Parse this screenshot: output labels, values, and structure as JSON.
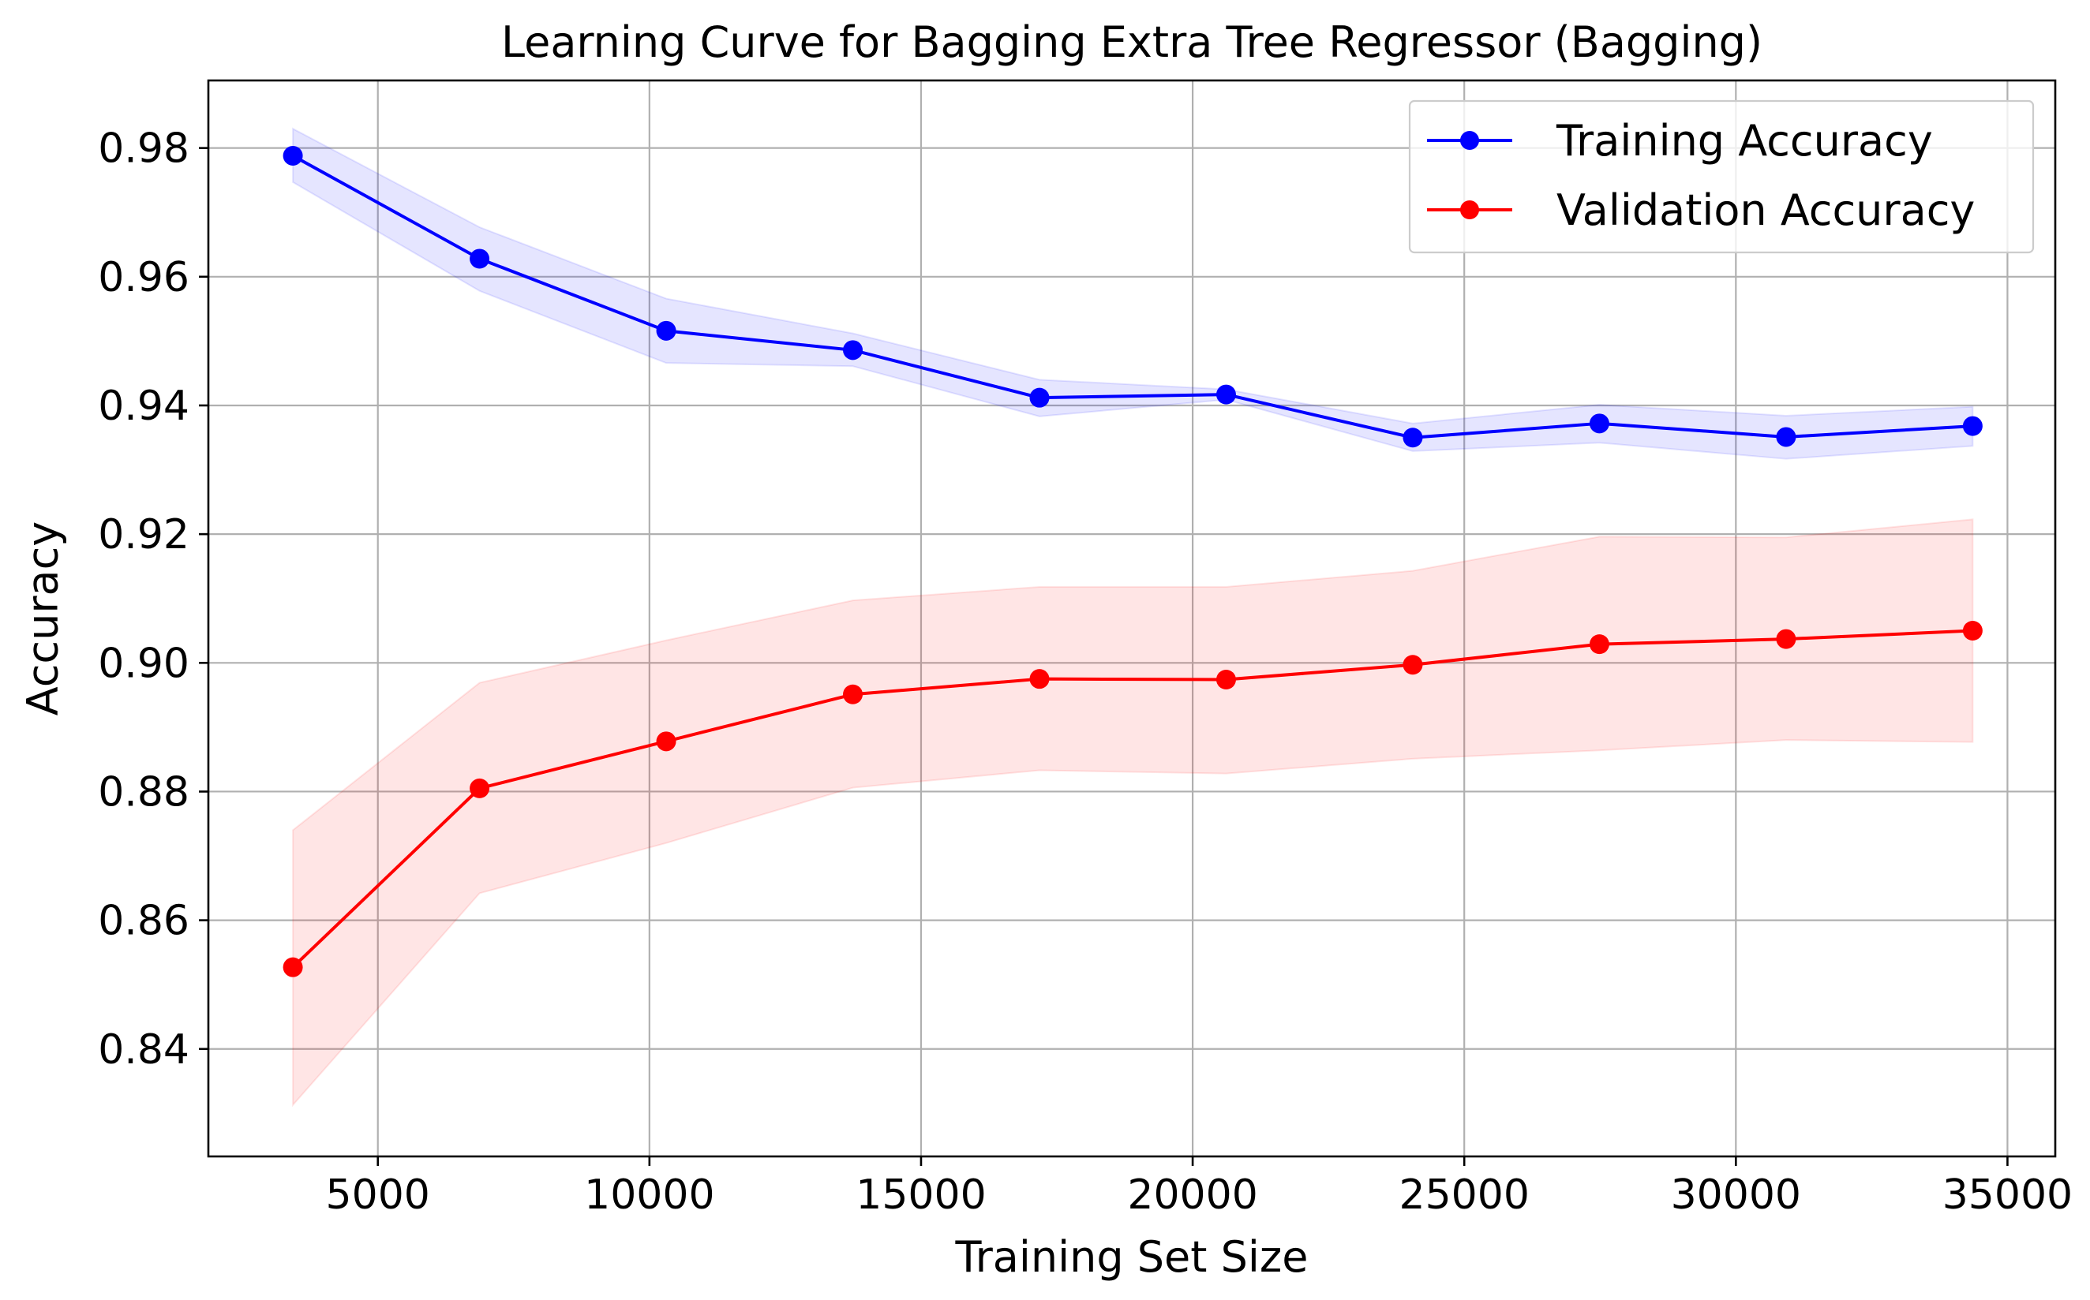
{
  "chart_data": {
    "type": "line",
    "title": "Learning Curve for Bagging Extra Tree Regressor (Bagging)",
    "xlabel": "Training Set Size",
    "ylabel": "Accuracy",
    "xlim": [
      1880,
      35880
    ],
    "ylim": [
      0.8233,
      0.9905
    ],
    "xticks": [
      5000,
      10000,
      15000,
      20000,
      25000,
      30000,
      35000
    ],
    "xtick_labels": [
      "5000",
      "10000",
      "15000",
      "20000",
      "25000",
      "30000",
      "35000"
    ],
    "yticks": [
      0.84,
      0.86,
      0.88,
      0.9,
      0.92,
      0.94,
      0.96,
      0.98
    ],
    "ytick_labels": [
      "0.84",
      "0.86",
      "0.88",
      "0.90",
      "0.92",
      "0.94",
      "0.96",
      "0.98"
    ],
    "grid": true,
    "legend": "top-right",
    "x": [
      3436,
      6872,
      10308,
      13744,
      17180,
      20616,
      24052,
      27488,
      30924,
      34360
    ],
    "series": [
      {
        "name": "Training Accuracy",
        "color": "#0000ff",
        "band_color": "#0000ff",
        "values": [
          0.9788,
          0.9628,
          0.9516,
          0.9486,
          0.9412,
          0.9417,
          0.935,
          0.9372,
          0.9351,
          0.9368
        ],
        "lower": [
          0.9747,
          0.9578,
          0.9466,
          0.9461,
          0.9383,
          0.9409,
          0.9329,
          0.9342,
          0.9317,
          0.9337
        ],
        "upper": [
          0.983,
          0.9677,
          0.9566,
          0.9512,
          0.944,
          0.9425,
          0.9372,
          0.9401,
          0.9384,
          0.9398
        ]
      },
      {
        "name": "Validation Accuracy",
        "color": "#ff0000",
        "band_color": "#ff0000",
        "values": [
          0.8527,
          0.8805,
          0.8878,
          0.8951,
          0.8975,
          0.8974,
          0.8997,
          0.9029,
          0.9037,
          0.905
        ],
        "lower": [
          0.8313,
          0.8642,
          0.872,
          0.8806,
          0.8833,
          0.8828,
          0.8851,
          0.8864,
          0.888,
          0.8877
        ],
        "upper": [
          0.874,
          0.8969,
          0.9035,
          0.9097,
          0.9118,
          0.9118,
          0.9143,
          0.9196,
          0.9195,
          0.9223
        ]
      }
    ]
  }
}
